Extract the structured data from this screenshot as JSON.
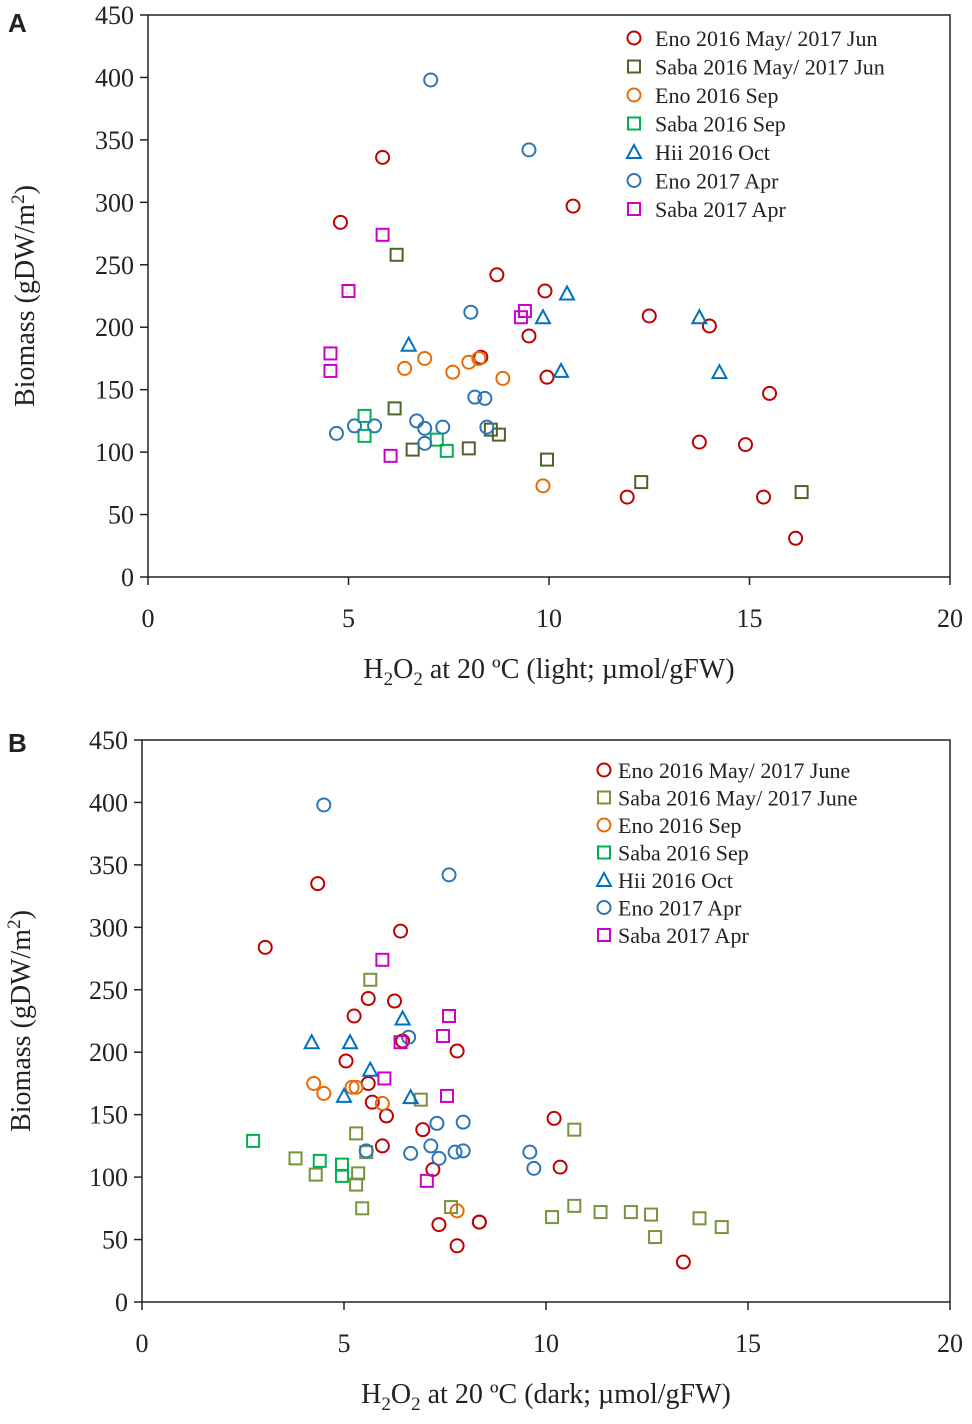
{
  "chart_data": [
    {
      "type": "scatter",
      "panel_label": "A",
      "title": "",
      "xlabel": {
        "pre": "H",
        "sub1": "2",
        "mid": "O",
        "sub2": "2",
        "post": " at 20 ºC (light; µmol/gFW)"
      },
      "ylabel": {
        "pre": "Biomass  (gDW/m",
        "sup": "2",
        "post": ")"
      },
      "xlim": [
        0,
        20
      ],
      "ylim": [
        0,
        450
      ],
      "xticks": [
        "0",
        "5",
        "10",
        "15",
        "20"
      ],
      "yticks": [
        "0",
        "50",
        "100",
        "150",
        "200",
        "250",
        "300",
        "350",
        "400",
        "450"
      ],
      "legend_position": "top-right",
      "series": [
        {
          "name": "Eno 2016 May/ 2017 Jun",
          "marker": "circle",
          "color": "#C00000",
          "points": [
            [
              4.8,
              284
            ],
            [
              5.85,
              336
            ],
            [
              10.6,
              297
            ],
            [
              8.7,
              242
            ],
            [
              9.9,
              229
            ],
            [
              9.5,
              193
            ],
            [
              12.5,
              209
            ],
            [
              14.0,
              201
            ],
            [
              9.95,
              160
            ],
            [
              8.3,
              176
            ],
            [
              15.5,
              147
            ],
            [
              13.75,
              108
            ],
            [
              14.9,
              106
            ],
            [
              11.95,
              64
            ],
            [
              15.35,
              64
            ],
            [
              16.15,
              31
            ]
          ]
        },
        {
          "name": "Saba 2016 May/ 2017 Jun",
          "marker": "square",
          "color": "#4F6228",
          "points": [
            [
              6.2,
              258
            ],
            [
              6.15,
              135
            ],
            [
              6.6,
              102
            ],
            [
              8.0,
              103
            ],
            [
              8.55,
              118
            ],
            [
              8.75,
              114
            ],
            [
              9.95,
              94
            ],
            [
              12.3,
              76
            ],
            [
              16.3,
              68
            ]
          ]
        },
        {
          "name": "Eno 2016 Sep",
          "marker": "circle",
          "color": "#E46C0A",
          "points": [
            [
              6.4,
              167
            ],
            [
              6.9,
              175
            ],
            [
              7.6,
              164
            ],
            [
              8.0,
              172
            ],
            [
              8.25,
              175
            ],
            [
              8.85,
              159
            ],
            [
              9.85,
              73
            ]
          ]
        },
        {
          "name": "Saba 2016 Sep",
          "marker": "square",
          "color": "#00B050",
          "points": [
            [
              5.4,
              129
            ],
            [
              5.4,
              113
            ],
            [
              7.2,
              110
            ],
            [
              7.45,
              101
            ]
          ]
        },
        {
          "name": "Hii 2016 Oct",
          "marker": "triangle",
          "color": "#0070C0",
          "points": [
            [
              6.5,
              186
            ],
            [
              10.45,
              227
            ],
            [
              9.85,
              208
            ],
            [
              13.75,
              208
            ],
            [
              10.3,
              165
            ],
            [
              14.25,
              164
            ]
          ]
        },
        {
          "name": "Eno 2017 Apr",
          "marker": "circle",
          "color": "#2E75B6",
          "points": [
            [
              7.05,
              398
            ],
            [
              9.5,
              342
            ],
            [
              8.05,
              212
            ],
            [
              8.15,
              144
            ],
            [
              8.4,
              143
            ],
            [
              4.7,
              115
            ],
            [
              5.15,
              121
            ],
            [
              5.65,
              121
            ],
            [
              6.7,
              125
            ],
            [
              6.9,
              119
            ],
            [
              7.35,
              120
            ],
            [
              8.45,
              120
            ],
            [
              6.9,
              107
            ]
          ]
        },
        {
          "name": "Saba 2017 Apr",
          "marker": "square",
          "color": "#CC00CC",
          "points": [
            [
              5.85,
              274
            ],
            [
              5.0,
              229
            ],
            [
              9.4,
              213
            ],
            [
              9.3,
              208
            ],
            [
              4.55,
              179
            ],
            [
              4.55,
              165
            ],
            [
              6.05,
              97
            ]
          ]
        }
      ]
    },
    {
      "type": "scatter",
      "panel_label": "B",
      "title": "",
      "xlabel": {
        "pre": "H",
        "sub1": "2",
        "mid": "O",
        "sub2": "2",
        "post": " at 20 ºC (dark; µmol/gFW)"
      },
      "ylabel": {
        "pre": "Biomass  (gDW/m",
        "sup": "2",
        "post": ")"
      },
      "xlim": [
        0,
        20
      ],
      "ylim": [
        0,
        450
      ],
      "xticks": [
        "0",
        "5",
        "10",
        "15",
        "20"
      ],
      "yticks": [
        "0",
        "50",
        "100",
        "150",
        "200",
        "250",
        "300",
        "350",
        "400",
        "450"
      ],
      "legend_position": "top-right",
      "series": [
        {
          "name": "Eno 2016 May/ 2017 June",
          "marker": "circle",
          "color": "#C00000",
          "points": [
            [
              3.05,
              284
            ],
            [
              4.35,
              335
            ],
            [
              6.4,
              297
            ],
            [
              5.25,
              229
            ],
            [
              5.6,
              243
            ],
            [
              6.25,
              241
            ],
            [
              5.05,
              193
            ],
            [
              6.45,
              209
            ],
            [
              7.8,
              201
            ],
            [
              5.6,
              175
            ],
            [
              5.7,
              160
            ],
            [
              6.05,
              149
            ],
            [
              5.95,
              125
            ],
            [
              6.95,
              138
            ],
            [
              10.2,
              147
            ],
            [
              10.35,
              108
            ],
            [
              7.2,
              106
            ],
            [
              7.35,
              62
            ],
            [
              7.8,
              45
            ],
            [
              8.35,
              64
            ],
            [
              8.35,
              64
            ],
            [
              13.4,
              32
            ]
          ]
        },
        {
          "name": "Saba 2016 May/ 2017 June",
          "marker": "square",
          "color": "#77933C",
          "points": [
            [
              5.65,
              258
            ],
            [
              5.3,
              135
            ],
            [
              6.9,
              162
            ],
            [
              3.8,
              115
            ],
            [
              4.3,
              102
            ],
            [
              5.55,
              120
            ],
            [
              5.35,
              103
            ],
            [
              5.3,
              94
            ],
            [
              5.45,
              75
            ],
            [
              7.65,
              76
            ],
            [
              10.7,
              138
            ],
            [
              10.15,
              68
            ],
            [
              10.7,
              77
            ],
            [
              11.35,
              72
            ],
            [
              12.1,
              72
            ],
            [
              12.6,
              70
            ],
            [
              12.7,
              52
            ],
            [
              13.8,
              67
            ],
            [
              14.35,
              60
            ]
          ]
        },
        {
          "name": "Eno 2016 Sep",
          "marker": "circle",
          "color": "#E46C0A",
          "points": [
            [
              4.25,
              175
            ],
            [
              4.5,
              167
            ],
            [
              5.2,
              172
            ],
            [
              5.3,
              172
            ],
            [
              5.95,
              159
            ],
            [
              7.8,
              73
            ]
          ]
        },
        {
          "name": "Saba 2016 Sep",
          "marker": "square",
          "color": "#00B050",
          "points": [
            [
              2.75,
              129
            ],
            [
              4.4,
              113
            ],
            [
              4.95,
              110
            ],
            [
              4.95,
              101
            ]
          ]
        },
        {
          "name": "Hii 2016 Oct",
          "marker": "triangle",
          "color": "#0070C0",
          "points": [
            [
              4.2,
              208
            ],
            [
              5.15,
              208
            ],
            [
              6.45,
              227
            ],
            [
              5.65,
              186
            ],
            [
              5.0,
              165
            ],
            [
              6.65,
              164
            ]
          ]
        },
        {
          "name": "Eno 2017 Apr",
          "marker": "circle",
          "color": "#2E75B6",
          "points": [
            [
              4.5,
              398
            ],
            [
              7.6,
              342
            ],
            [
              6.6,
              212
            ],
            [
              7.3,
              143
            ],
            [
              7.95,
              144
            ],
            [
              5.55,
              121
            ],
            [
              7.15,
              125
            ],
            [
              7.75,
              120
            ],
            [
              7.95,
              121
            ],
            [
              9.6,
              120
            ],
            [
              6.65,
              119
            ],
            [
              7.35,
              115
            ],
            [
              9.7,
              107
            ]
          ]
        },
        {
          "name": "Saba 2017 Apr",
          "marker": "square",
          "color": "#CC00CC",
          "points": [
            [
              5.95,
              274
            ],
            [
              7.6,
              229
            ],
            [
              7.45,
              213
            ],
            [
              6.4,
              208
            ],
            [
              6.0,
              179
            ],
            [
              7.55,
              165
            ],
            [
              7.05,
              97
            ]
          ]
        }
      ]
    }
  ]
}
